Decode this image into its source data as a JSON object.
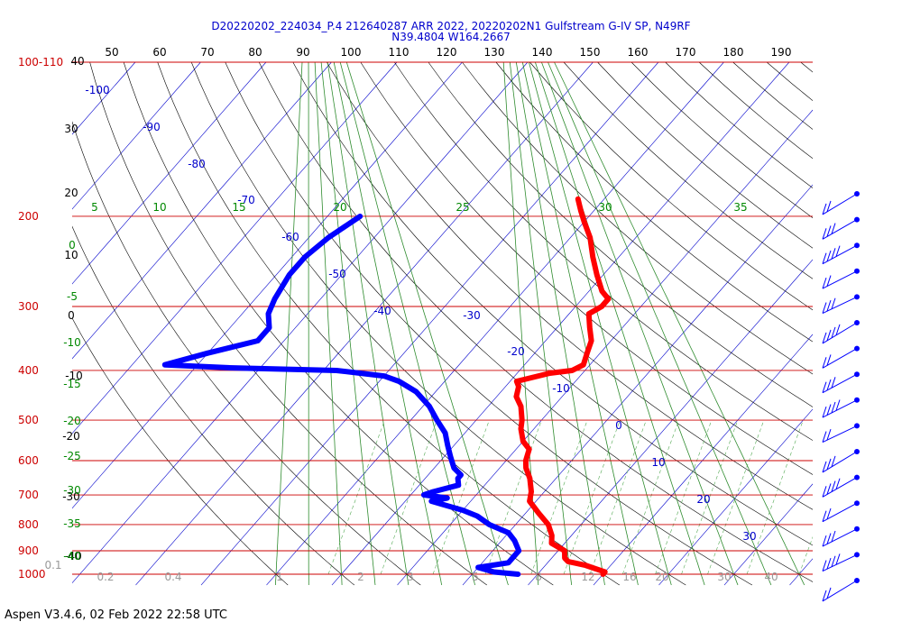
{
  "header": {
    "line1": "D20220202_224034_P.4 212640287 ARR 2022, 20220202N1 Gulfstream G-IV SP, N49RF",
    "line2": "N39.4804 W164.2667"
  },
  "footer": {
    "text": "Aspen V3.4.6, 02 Feb 2022  22:58 UTC"
  },
  "colors": {
    "temperature": "#ff0000",
    "dewpoint": "#0000ff",
    "isobar": "#cc0000",
    "isotherm": "#0000cc",
    "dry_adiabat": "#000000",
    "moist_adiabat": "#006600",
    "mixing_ratio": "#008800",
    "title": "#0000cc"
  },
  "chart_data": {
    "type": "line",
    "subtype": "skew-T log-P sounding",
    "x_axis": "temperature (C)",
    "y_axis": "pressure (hPa), log scale",
    "ylim": [
      1000,
      100
    ],
    "xlim": [
      -40,
      40
    ],
    "isobars_hpa": [
      100,
      200,
      300,
      400,
      500,
      600,
      700,
      800,
      900,
      1000
    ],
    "isobar_labels": [
      "100-110",
      "200",
      "300",
      "400",
      "500",
      "600",
      "700",
      "800",
      "900",
      "1000"
    ],
    "isotherms_c": [
      -100,
      -90,
      -80,
      -70,
      -60,
      -50,
      -40,
      -30,
      -20,
      -10,
      0,
      10,
      20,
      30
    ],
    "theta_top_labels": [
      "50",
      "60",
      "70",
      "80",
      "90",
      "100",
      "110",
      "120",
      "130",
      "140",
      "150",
      "160",
      "170",
      "180",
      "190"
    ],
    "theta_left_labels": [
      "40",
      "30",
      "20",
      "10",
      "0",
      "-10",
      "-20",
      "-30",
      "-40"
    ],
    "theta_e_labels": [
      "5",
      "10",
      "15",
      "20",
      "25",
      "30",
      "35"
    ],
    "theta_e_left_labels": [
      "0",
      "-5",
      "-10",
      "-15",
      "-20",
      "-25",
      "-30",
      "-35",
      "-40"
    ],
    "mixing_ratio_labels": [
      "0.1",
      "0.2",
      "0.4",
      "1",
      "2",
      "3",
      "5",
      "8",
      "12",
      "16",
      "20",
      "30",
      "40"
    ],
    "series": [
      {
        "name": "Temperature",
        "points": [
          [
            1000,
            10
          ],
          [
            990,
            10
          ],
          [
            960,
            6
          ],
          [
            945,
            3
          ],
          [
            930,
            2
          ],
          [
            900,
            1
          ],
          [
            870,
            -2
          ],
          [
            840,
            -3
          ],
          [
            800,
            -5
          ],
          [
            760,
            -8
          ],
          [
            720,
            -11
          ],
          [
            690,
            -12
          ],
          [
            650,
            -14
          ],
          [
            620,
            -16
          ],
          [
            600,
            -17
          ],
          [
            570,
            -18
          ],
          [
            550,
            -20
          ],
          [
            520,
            -22
          ],
          [
            500,
            -23
          ],
          [
            470,
            -25
          ],
          [
            450,
            -27
          ],
          [
            430,
            -28
          ],
          [
            420,
            -29
          ],
          [
            405,
            -25
          ],
          [
            400,
            -22
          ],
          [
            390,
            -21
          ],
          [
            370,
            -22
          ],
          [
            350,
            -23
          ],
          [
            330,
            -25
          ],
          [
            310,
            -27
          ],
          [
            300,
            -26
          ],
          [
            290,
            -26
          ],
          [
            280,
            -28
          ],
          [
            260,
            -31
          ],
          [
            240,
            -34
          ],
          [
            220,
            -37
          ],
          [
            205,
            -40
          ],
          [
            195,
            -42
          ],
          [
            185,
            -44
          ]
        ]
      },
      {
        "name": "Dewpoint",
        "points": [
          [
            1000,
            -3
          ],
          [
            990,
            -7
          ],
          [
            970,
            -10
          ],
          [
            950,
            -6
          ],
          [
            930,
            -6
          ],
          [
            900,
            -6
          ],
          [
            860,
            -8
          ],
          [
            830,
            -10
          ],
          [
            800,
            -14
          ],
          [
            770,
            -17
          ],
          [
            750,
            -20
          ],
          [
            730,
            -24
          ],
          [
            720,
            -26
          ],
          [
            710,
            -24
          ],
          [
            700,
            -28
          ],
          [
            690,
            -27
          ],
          [
            670,
            -24
          ],
          [
            650,
            -25
          ],
          [
            640,
            -25
          ],
          [
            620,
            -27
          ],
          [
            590,
            -29
          ],
          [
            560,
            -31
          ],
          [
            530,
            -33
          ],
          [
            500,
            -36
          ],
          [
            470,
            -39
          ],
          [
            440,
            -43
          ],
          [
            420,
            -47
          ],
          [
            410,
            -50
          ],
          [
            400,
            -58
          ],
          [
            395,
            -75
          ],
          [
            390,
            -85
          ],
          [
            370,
            -80
          ],
          [
            350,
            -74
          ],
          [
            330,
            -74
          ],
          [
            310,
            -76
          ],
          [
            290,
            -77
          ],
          [
            260,
            -78
          ],
          [
            240,
            -78
          ],
          [
            220,
            -77
          ],
          [
            200,
            -75
          ]
        ]
      }
    ],
    "wind_barbs_count": 16
  }
}
